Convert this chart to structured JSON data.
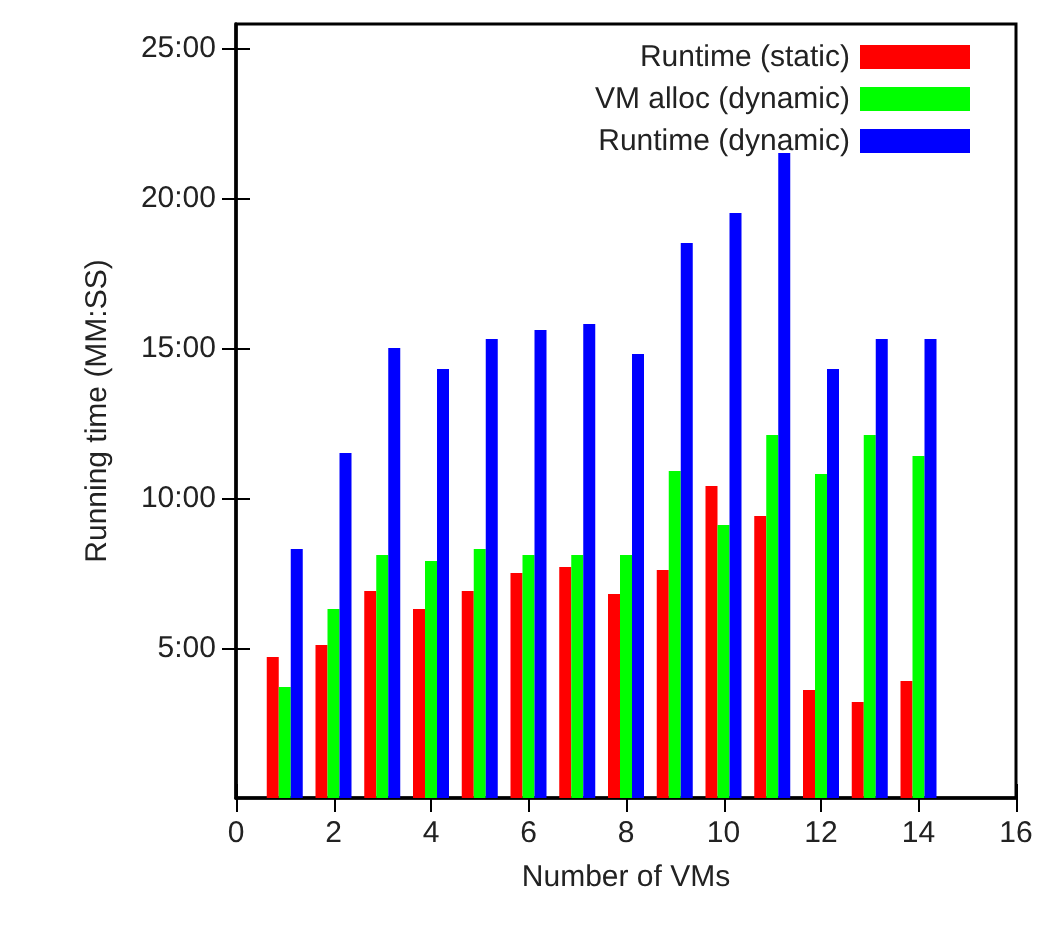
{
  "chart_data": {
    "type": "bar",
    "xlabel": "Number of VMs",
    "ylabel": "Running time (MM:SS)",
    "x": [
      1,
      2,
      3,
      4,
      5,
      6,
      7,
      8,
      9,
      10,
      11,
      12,
      13,
      14
    ],
    "series": [
      {
        "name": "Runtime (static)",
        "color": "#ff0000",
        "values": [
          4.7,
          5.1,
          6.9,
          6.3,
          6.9,
          7.5,
          7.7,
          6.8,
          7.6,
          10.4,
          9.4,
          3.6,
          3.2,
          3.9
        ]
      },
      {
        "name": "VM alloc (dynamic)",
        "color": "#00ff00",
        "values": [
          3.7,
          6.3,
          8.1,
          7.9,
          8.3,
          8.1,
          8.1,
          8.1,
          10.9,
          9.1,
          12.1,
          10.8,
          12.1,
          11.4
        ]
      },
      {
        "name": "Runtime (dynamic)",
        "color": "#0000ff",
        "values": [
          8.3,
          11.5,
          15.0,
          14.3,
          15.3,
          15.6,
          15.8,
          14.8,
          18.5,
          19.5,
          21.5,
          14.3,
          15.3,
          15.3
        ]
      }
    ],
    "xlim": [
      0,
      16
    ],
    "xticks": [
      0,
      2,
      4,
      6,
      8,
      10,
      12,
      14,
      16
    ],
    "ylim": [
      0,
      25.8
    ],
    "yticks": [
      {
        "value": 5,
        "label": "5:00"
      },
      {
        "value": 10,
        "label": "10:00"
      },
      {
        "value": 15,
        "label": "15:00"
      },
      {
        "value": 20,
        "label": "20:00"
      },
      {
        "value": 25,
        "label": "25:00"
      }
    ],
    "legend": "top right",
    "grid": false
  }
}
